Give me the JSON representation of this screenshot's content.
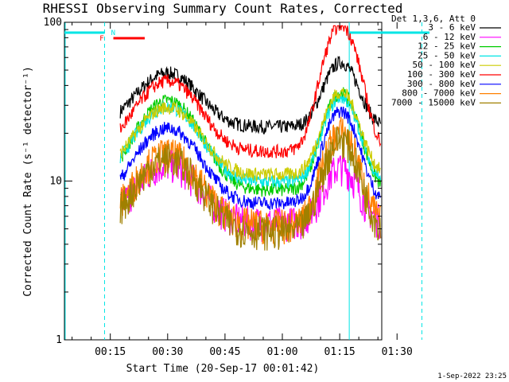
{
  "chart_data": {
    "type": "line",
    "title": "RHESSI Observing Summary Count Rates, Corrected",
    "xlabel": "Start Time (20-Sep-17 00:01:42)",
    "ylabel": "Corrected Count Rate (s⁻¹ detector⁻¹)",
    "y_scale": "log",
    "ylim": [
      1,
      100
    ],
    "y_ticks": [
      {
        "value": 1,
        "label": "1"
      },
      {
        "value": 10,
        "label": "10"
      },
      {
        "value": 100,
        "label": "100"
      }
    ],
    "xlim_min": [
      3,
      86
    ],
    "x_ticks": [
      {
        "value": 15,
        "label": "00:15"
      },
      {
        "value": 30,
        "label": "00:30"
      },
      {
        "value": 45,
        "label": "00:45"
      },
      {
        "value": 60,
        "label": "01:00"
      },
      {
        "value": 75,
        "label": "01:15"
      },
      {
        "value": 90,
        "label": "01:30"
      }
    ],
    "legend_header": "Det 1,3,6, Att 0",
    "legend_position": "top-right",
    "series": [
      {
        "name": "3 - 6 keV",
        "color": "#000000",
        "level": 1.0,
        "peak1": 1.0,
        "peak2": 1.0
      },
      {
        "name": "6 - 12 keV",
        "color": "#ff00ff",
        "level": 0.25,
        "peak1": 0.28,
        "peak2": 0.2
      },
      {
        "name": "12 - 25 keV",
        "color": "#00cc00",
        "level": 0.4,
        "peak1": 0.9,
        "peak2": 0.8
      },
      {
        "name": "25 - 50 keV",
        "color": "#00e5e5",
        "level": 0.45,
        "peak1": 0.75,
        "peak2": 0.7
      },
      {
        "name": "50 - 100 keV",
        "color": "#cccc00",
        "level": 0.5,
        "peak1": 0.7,
        "peak2": 0.75
      },
      {
        "name": "100 - 300 keV",
        "color": "#ff0000",
        "level": 0.7,
        "peak1": 1.05,
        "peak2": 2.4
      },
      {
        "name": "300 - 800 keV",
        "color": "#0000ff",
        "level": 0.33,
        "peak1": 0.55,
        "peak2": 0.6
      },
      {
        "name": "800 - 7000 keV",
        "color": "#ff8000",
        "level": 0.24,
        "peak1": 0.37,
        "peak2": 0.45
      },
      {
        "name": "7000 - 15000 keV",
        "color": "#a08000",
        "level": 0.22,
        "peak1": 0.35,
        "peak2": 0.4
      }
    ],
    "flags": [
      {
        "label": "N",
        "color": "#00e5e5"
      },
      {
        "label": "F",
        "color": "#ff0000"
      }
    ],
    "footer_date": "1-Sep-2022 23:25"
  }
}
